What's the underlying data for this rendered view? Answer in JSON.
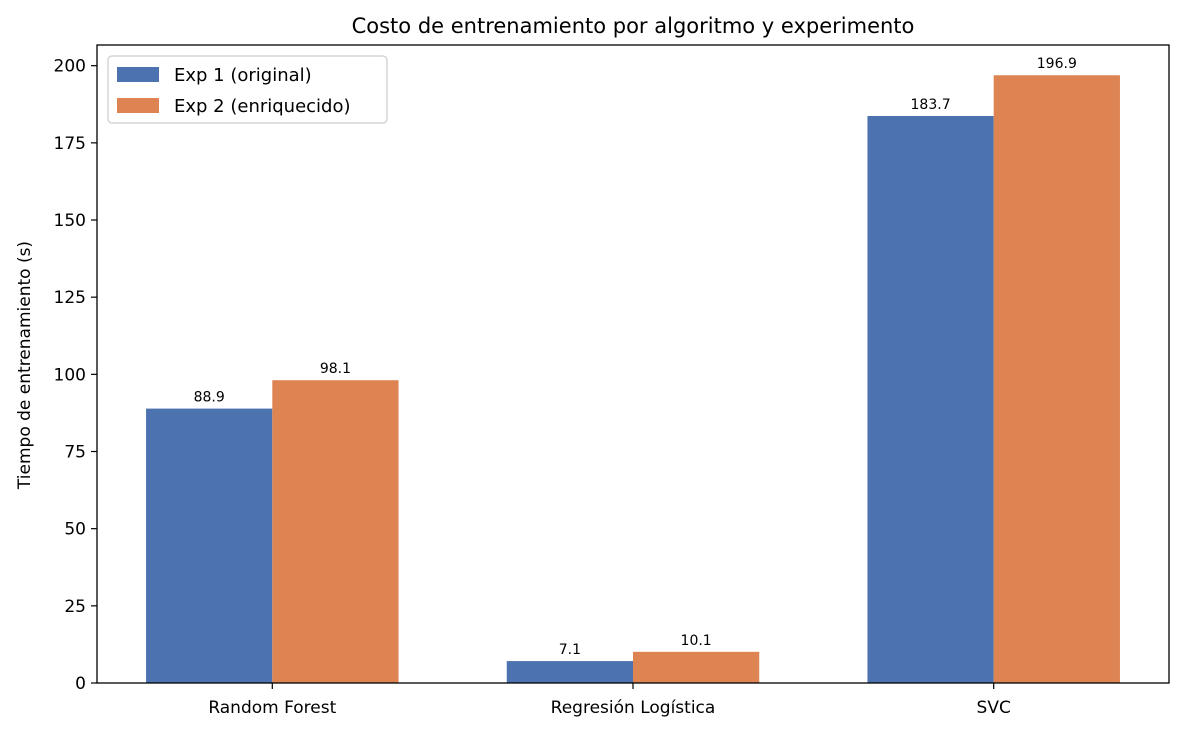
{
  "chart_data": {
    "type": "bar",
    "title": "Costo de entrenamiento por algoritmo y experimento",
    "xlabel": "",
    "ylabel": "Tiempo de entrenamiento (s)",
    "categories": [
      "Random Forest",
      "Regresión Logística",
      "SVC"
    ],
    "series": [
      {
        "name": "Exp 1 (original)",
        "values": [
          88.9,
          7.1,
          183.7
        ],
        "labels": [
          "88.9",
          "7.1",
          "183.7"
        ],
        "color": "#4c72b0"
      },
      {
        "name": "Exp 2 (enriquecido)",
        "values": [
          98.1,
          10.1,
          196.9
        ],
        "labels": [
          "98.1",
          "10.1",
          "196.9"
        ],
        "color": "#dd8452"
      }
    ],
    "ylim": [
      0,
      206.7
    ],
    "yticks": [
      0,
      25,
      50,
      75,
      100,
      125,
      150,
      175,
      200
    ],
    "legend_position": "top-left",
    "grid": false
  }
}
